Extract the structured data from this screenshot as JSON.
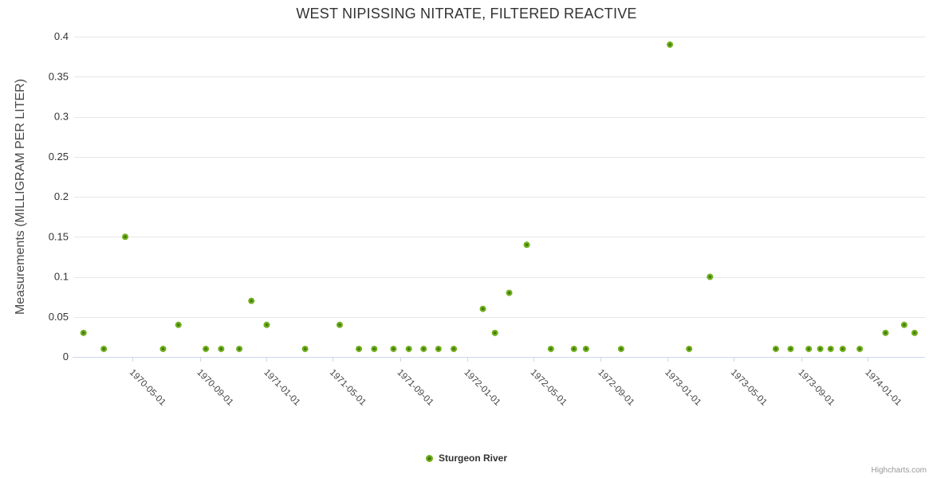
{
  "title": "WEST NIPISSING NITRATE, FILTERED REACTIVE",
  "legend": {
    "series_label": "Sturgeon River"
  },
  "credits_label": "Highcharts.com",
  "colors": {
    "point_outer": "#72b01d",
    "point_core": "#3f7a0c",
    "grid_line": "#e6e6e6",
    "axis_line": "#ccd6eb",
    "title_text": "#333333",
    "y_label_text": "#333333",
    "x_label_text": "#444444",
    "credits_text": "#999999"
  },
  "chart_data": {
    "type": "scatter",
    "title": "WEST NIPISSING NITRATE, FILTERED REACTIVE",
    "xlabel": "",
    "ylabel": "Measurements (MILLIGRAM PER LITER)",
    "ylim": [
      0,
      0.4
    ],
    "yticks": [
      0,
      0.05,
      0.1,
      0.15,
      0.2,
      0.25,
      0.3,
      0.35,
      0.4
    ],
    "ytick_labels": [
      "0",
      "0.05",
      "0.1",
      "0.15",
      "0.2",
      "0.25",
      "0.3",
      "0.35",
      "0.4"
    ],
    "xticks": [
      "1970-05-01",
      "1970-09-01",
      "1971-01-01",
      "1971-05-01",
      "1971-09-01",
      "1972-01-01",
      "1972-05-01",
      "1972-09-01",
      "1973-01-01",
      "1973-05-01",
      "1973-09-01",
      "1974-01-01"
    ],
    "x_range": [
      "1970-01-15",
      "1974-04-15"
    ],
    "grid": true,
    "legend_position": "bottom-center",
    "series": [
      {
        "name": "Sturgeon River",
        "points": [
          [
            "1970-02-01",
            0.03
          ],
          [
            "1970-03-10",
            0.01
          ],
          [
            "1970-04-18",
            0.15
          ],
          [
            "1970-06-26",
            0.01
          ],
          [
            "1970-07-24",
            0.04
          ],
          [
            "1970-09-12",
            0.01
          ],
          [
            "1970-10-10",
            0.01
          ],
          [
            "1970-11-12",
            0.01
          ],
          [
            "1970-12-04",
            0.07
          ],
          [
            "1971-01-01",
            0.04
          ],
          [
            "1971-03-12",
            0.01
          ],
          [
            "1971-05-14",
            0.04
          ],
          [
            "1971-06-18",
            0.01
          ],
          [
            "1971-07-16",
            0.01
          ],
          [
            "1971-08-20",
            0.01
          ],
          [
            "1971-09-17",
            0.01
          ],
          [
            "1971-10-14",
            0.01
          ],
          [
            "1971-11-10",
            0.01
          ],
          [
            "1971-12-08",
            0.01
          ],
          [
            "1972-01-30",
            0.06
          ],
          [
            "1972-02-21",
            0.03
          ],
          [
            "1972-03-18",
            0.08
          ],
          [
            "1972-04-19",
            0.14
          ],
          [
            "1972-06-02",
            0.01
          ],
          [
            "1972-07-14",
            0.01
          ],
          [
            "1972-08-05",
            0.01
          ],
          [
            "1972-10-08",
            0.01
          ],
          [
            "1973-01-05",
            0.39
          ],
          [
            "1973-02-09",
            0.01
          ],
          [
            "1973-03-19",
            0.1
          ],
          [
            "1973-07-17",
            0.01
          ],
          [
            "1973-08-13",
            0.01
          ],
          [
            "1973-09-15",
            0.01
          ],
          [
            "1973-10-06",
            0.01
          ],
          [
            "1973-10-25",
            0.01
          ],
          [
            "1973-11-16",
            0.01
          ],
          [
            "1973-12-17",
            0.01
          ],
          [
            "1974-02-02",
            0.03
          ],
          [
            "1974-03-08",
            0.04
          ],
          [
            "1974-03-27",
            0.03
          ]
        ]
      }
    ]
  }
}
